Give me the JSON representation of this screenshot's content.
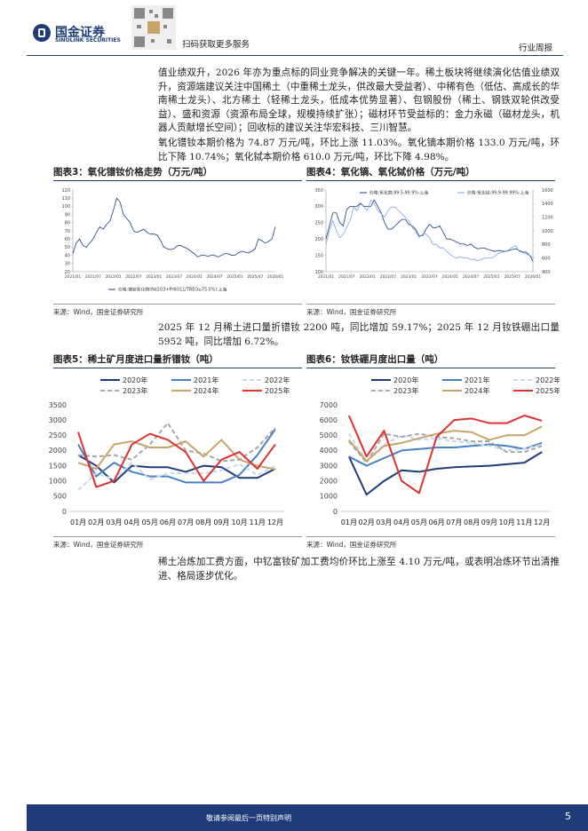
{
  "header": {
    "logo": "国金证券",
    "logo_en": "SINOLINK SECURITIES",
    "qr_caption": "扫码获取更多服务",
    "report_type": "行业周报"
  },
  "paragraphs": [
    "值业绩双升，2026 年亦为重点标的同业竞争解决的关键一年。稀土板块将继续演化估值业绩双升，资源端建议关注中国稀土（中重稀土龙头，供改最大受益者）、中稀有色（低估、高成长的华南稀土龙头）、北方稀土（轻稀土龙头，低成本优势显著）、包钢股份（稀土、钢铁双轮供改受益）、盛和资源（资源布局全球，规模持续扩张）；磁材环节受益标的：金力永磁（磁材龙头，机器人贡献增长空间）；回收标的建议关注华宏科技、三川智慧。",
    "氧化镨钕本期价格为 74.87 万元/吨，环比上涨 11.03%。氧化镝本期价格 133.0 万元/吨，环比下降 10.74%；氧化铽本期价格 610.0 万元/吨，环比下降 4.98%。",
    "2025 年 12 月稀土进口量折镨钕 2200 吨，同比增加 59.17%；2025 年 12 月钕铁硼出口量 5952 吨，同比增加 6.72%。",
    "稀土冶炼加工费方面，中钇富钕矿加工费均价环比上涨至 4.10 万元/吨，或表明冶炼环节出清推进、格局逐步优化。"
  ],
  "chart_data": [
    {
      "type": "line",
      "title": "图表3：氧化镨钕价格走势（万元/吨）",
      "source": "来源：Wind，国金证券研究所",
      "legend": "bottom",
      "x": [
        "2021/01",
        "2021/02",
        "2021/03",
        "2021/04",
        "2021/05",
        "2021/06",
        "2021/07",
        "2021/08",
        "2021/09",
        "2021/10",
        "2021/11",
        "2021/12",
        "2022/01",
        "2022/02",
        "2022/03",
        "2022/04",
        "2022/05",
        "2022/06",
        "2022/07",
        "2022/08",
        "2022/09",
        "2022/10",
        "2022/11",
        "2022/12",
        "2023/01",
        "2023/02",
        "2023/03",
        "2023/04",
        "2023/05",
        "2023/06",
        "2023/07",
        "2023/08",
        "2023/09",
        "2023/10",
        "2023/11",
        "2023/12",
        "2024/01",
        "2024/02",
        "2024/03",
        "2024/04",
        "2024/05",
        "2024/06",
        "2024/07",
        "2024/08",
        "2024/09",
        "2024/10",
        "2024/11",
        "2024/12",
        "2025/01",
        "2025/02",
        "2025/03",
        "2025/04",
        "2025/05",
        "2025/06",
        "2025/07",
        "2025/08",
        "2025/09",
        "2025/10",
        "2025/11",
        "2025/12",
        "2026/01"
      ],
      "xticks": [
        "2021/01",
        "2021/07",
        "2022/01",
        "2022/07",
        "2023/01",
        "2023/07",
        "2024/01",
        "2024/07",
        "2025/01",
        "2025/07",
        "2026/01"
      ],
      "ylim": [
        20,
        120
      ],
      "yticks": [
        20,
        30,
        40,
        50,
        60,
        70,
        80,
        90,
        100,
        110,
        120
      ],
      "series": [
        {
          "name": "价格:镨钕氧化物(Nd2O3+Pr6O11/TREO≥75.0%):上海",
          "color": "#1f3c78",
          "values": [
            42,
            55,
            60,
            52,
            50,
            55,
            60,
            68,
            75,
            72,
            78,
            82,
            95,
            110,
            105,
            90,
            85,
            80,
            70,
            68,
            70,
            72,
            68,
            66,
            66,
            65,
            58,
            50,
            48,
            47,
            48,
            52,
            52,
            50,
            48,
            45,
            42,
            38,
            40,
            40,
            39,
            40,
            40,
            38,
            40,
            42,
            42,
            40,
            40,
            43,
            45,
            44,
            43,
            45,
            48,
            60,
            58,
            55,
            57,
            60,
            75
          ]
        }
      ]
    },
    {
      "type": "line",
      "title": "图表4：氧化镝、氧化铽价格（万元/吨）",
      "source": "来源：Wind，国金证券研究所",
      "legend": "top",
      "x": [
        "2021/01",
        "2021/02",
        "2021/03",
        "2021/04",
        "2021/05",
        "2021/06",
        "2021/07",
        "2021/08",
        "2021/09",
        "2021/10",
        "2021/11",
        "2021/12",
        "2022/01",
        "2022/02",
        "2022/03",
        "2022/04",
        "2022/05",
        "2022/06",
        "2022/07",
        "2022/08",
        "2022/09",
        "2022/10",
        "2022/11",
        "2022/12",
        "2023/01",
        "2023/02",
        "2023/03",
        "2023/04",
        "2023/05",
        "2023/06",
        "2023/07",
        "2023/08",
        "2023/09",
        "2023/10",
        "2023/11",
        "2023/12",
        "2024/01",
        "2024/02",
        "2024/03",
        "2024/04",
        "2024/05",
        "2024/06",
        "2024/07",
        "2024/08",
        "2024/09",
        "2024/10",
        "2024/11",
        "2024/12",
        "2025/01",
        "2025/02",
        "2025/03",
        "2025/04",
        "2025/05",
        "2025/06",
        "2025/07",
        "2025/08",
        "2025/09",
        "2025/10",
        "2025/11",
        "2025/12",
        "2026/01"
      ],
      "xticks": [
        "2021/01",
        "2021/07",
        "2022/01",
        "2022/07",
        "2023/01",
        "2023/07",
        "2024/01",
        "2024/07",
        "2025/01",
        "2025/07",
        "2026/01"
      ],
      "ylim": [
        100,
        350
      ],
      "yticks": [
        100,
        150,
        200,
        250,
        300,
        350
      ],
      "y2lim": [
        400,
        1600
      ],
      "y2ticks": [
        400,
        600,
        800,
        1000,
        1200,
        1400,
        1600
      ],
      "series": [
        {
          "name": "价格:氧化镝:99.5-99.9%:上海",
          "color": "#1f3c78",
          "values": [
            200,
            240,
            280,
            280,
            250,
            240,
            290,
            300,
            300,
            300,
            310,
            300,
            300,
            300,
            320,
            300,
            280,
            250,
            230,
            230,
            240,
            250,
            260,
            260,
            245,
            240,
            230,
            210,
            210,
            230,
            245,
            235,
            235,
            240,
            220,
            200,
            200,
            195,
            190,
            185,
            185,
            180,
            185,
            175,
            170,
            172,
            172,
            168,
            165,
            162,
            165,
            163,
            162,
            165,
            168,
            170,
            165,
            160,
            160,
            150,
            133
          ]
        },
        {
          "name": "价格:氧化铽:99.9-99.99%:上海",
          "color": "#7ea6dc",
          "axis": "y2",
          "values": [
            800,
            1000,
            1150,
            1000,
            900,
            950,
            1050,
            1150,
            1350,
            1300,
            1400,
            1350,
            1300,
            1450,
            1400,
            1300,
            1250,
            1200,
            1300,
            1350,
            1350,
            1300,
            1250,
            1200,
            1150,
            1050,
            1000,
            900,
            950,
            950,
            900,
            800,
            800,
            750,
            750,
            700,
            650,
            620,
            600,
            620,
            600,
            600,
            580,
            580,
            560,
            580,
            600,
            600,
            600,
            630,
            670,
            680,
            700,
            720,
            760,
            780,
            700,
            680,
            660,
            640,
            610
          ]
        }
      ]
    },
    {
      "type": "line",
      "title": "图表5：稀土矿月度进口量折镨钕（吨）",
      "source": "来源：Wind，国金证券研究所",
      "legend": "top",
      "categories": [
        "01月",
        "02月",
        "03月",
        "04月",
        "05月",
        "06月",
        "07月",
        "08月",
        "09月",
        "10月",
        "11月",
        "12月"
      ],
      "ylim": [
        0,
        3500
      ],
      "yticks": [
        0,
        500,
        1000,
        1500,
        2000,
        2500,
        3000,
        3500
      ],
      "series": [
        {
          "name": "2020年",
          "color": "#1f3c78",
          "values": [
            1850,
            1500,
            950,
            1500,
            1450,
            1450,
            1300,
            1500,
            1450,
            1100,
            1100,
            1400
          ]
        },
        {
          "name": "2021年",
          "color": "#4a7fc1",
          "values": [
            2200,
            1150,
            1600,
            1300,
            1150,
            1150,
            950,
            950,
            950,
            1200,
            1850,
            2700
          ]
        },
        {
          "name": "2022年",
          "color": "#c5d9f1",
          "dash": true,
          "values": [
            700,
            1250,
            1050,
            1600,
            1050,
            1250,
            1250,
            1250,
            1350,
            1550,
            1200,
            1500
          ]
        },
        {
          "name": "2023年",
          "color": "#a6a6a6",
          "dash": true,
          "values": [
            1850,
            1800,
            1850,
            1700,
            2200,
            2900,
            2000,
            1900,
            1650,
            1700,
            2100,
            2750
          ]
        },
        {
          "name": "2024年",
          "color": "#c9a46a",
          "values": [
            1600,
            1400,
            2200,
            2300,
            2100,
            2100,
            2300,
            1800,
            2350,
            1700,
            1500,
            1380
          ]
        },
        {
          "name": "2025年",
          "color": "#e03030",
          "values": [
            2600,
            800,
            1000,
            2200,
            2550,
            2350,
            1950,
            1000,
            1700,
            1950,
            1400,
            2200
          ]
        }
      ]
    },
    {
      "type": "line",
      "title": "图表6：钕铁硼月度出口量（吨）",
      "source": "来源：Wind，国金证券研究所",
      "legend": "top",
      "categories": [
        "01月",
        "02月",
        "03月",
        "04月",
        "05月",
        "06月",
        "07月",
        "08月",
        "09月",
        "10月",
        "11月",
        "12月"
      ],
      "ylim": [
        0,
        7000
      ],
      "yticks": [
        0,
        1000,
        2000,
        3000,
        4000,
        5000,
        6000,
        7000
      ],
      "series": [
        {
          "name": "2020年",
          "color": "#1f3c78",
          "values": [
            3600,
            1100,
            2000,
            2700,
            2600,
            2800,
            2900,
            2950,
            3000,
            3100,
            3200,
            3900
          ]
        },
        {
          "name": "2021年",
          "color": "#4a7fc1",
          "values": [
            3600,
            3000,
            3500,
            4000,
            4100,
            4200,
            4200,
            4300,
            4400,
            4300,
            4100,
            4500
          ]
        },
        {
          "name": "2022年",
          "color": "#c5d9f1",
          "dash": true,
          "values": [
            5100,
            3300,
            4400,
            5000,
            4700,
            4800,
            4600,
            4500,
            4300,
            4000,
            4100,
            4400
          ]
        },
        {
          "name": "2023年",
          "color": "#a6a6a6",
          "dash": true,
          "values": [
            4600,
            3200,
            5100,
            4900,
            5100,
            4900,
            4800,
            4600,
            4600,
            3900,
            3900,
            4300
          ]
        },
        {
          "name": "2024年",
          "color": "#c9a46a",
          "values": [
            4700,
            3300,
            4300,
            4500,
            4800,
            5100,
            5300,
            5200,
            4700,
            5000,
            5000,
            5577
          ]
        },
        {
          "name": "2025年",
          "color": "#e03030",
          "values": [
            6300,
            3600,
            5300,
            2000,
            1200,
            4900,
            6000,
            6100,
            5800,
            5800,
            6300,
            5952
          ]
        }
      ]
    }
  ],
  "footer": {
    "disclaimer": "敬请参阅最后一页特别声明",
    "page": "5"
  }
}
